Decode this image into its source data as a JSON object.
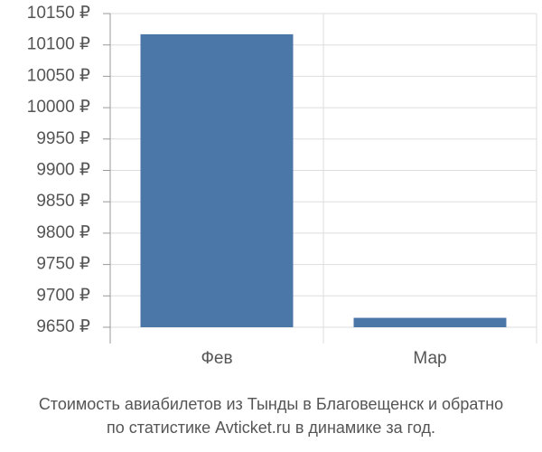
{
  "chart_data": {
    "type": "bar",
    "title": [
      "Стоимость авиабилетов из Тынды в Благовещенск и обратно",
      "по статистике Avticket.ru в динамике за год."
    ],
    "categories": [
      "Фев",
      "Мар"
    ],
    "values": [
      10117,
      9665
    ],
    "color": "#4a76a8",
    "ylim": [
      9650,
      10150
    ],
    "yticks": [
      {
        "value": 9650,
        "label": "9650 ₽"
      },
      {
        "value": 9700,
        "label": "9700 ₽"
      },
      {
        "value": 9750,
        "label": "9750 ₽"
      },
      {
        "value": 9800,
        "label": "9800 ₽"
      },
      {
        "value": 9850,
        "label": "9850 ₽"
      },
      {
        "value": 9900,
        "label": "9900 ₽"
      },
      {
        "value": 9950,
        "label": "9950 ₽"
      },
      {
        "value": 10000,
        "label": "10000 ₽"
      },
      {
        "value": 10050,
        "label": "10050 ₽"
      },
      {
        "value": 10100,
        "label": "10100 ₽"
      },
      {
        "value": 10150,
        "label": "10150 ₽"
      }
    ],
    "grid": true
  }
}
